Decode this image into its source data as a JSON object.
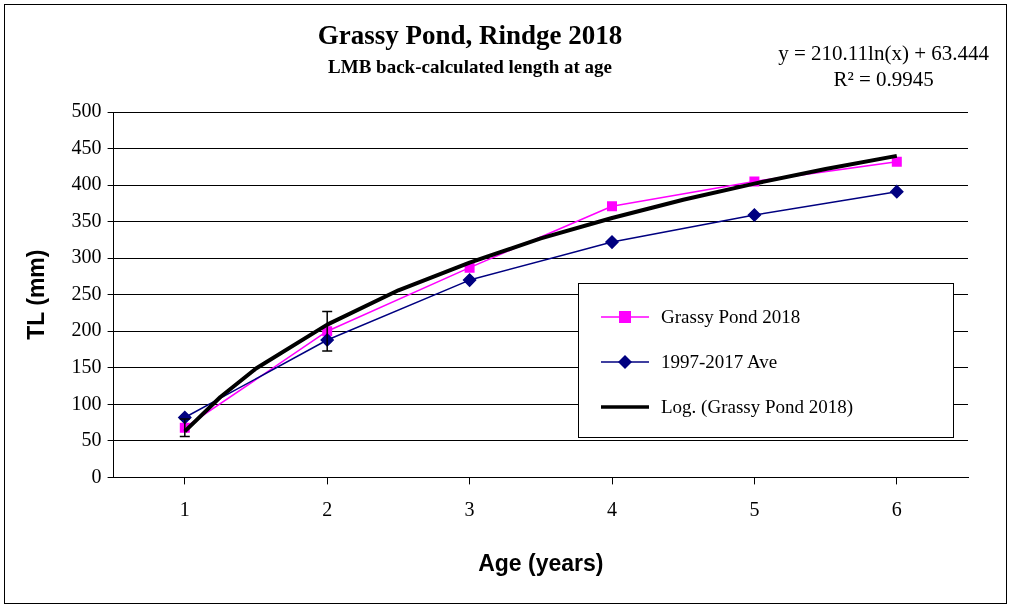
{
  "chart_data": {
    "type": "line",
    "title": "Grassy Pond, Rindge 2018",
    "subtitle": "LMB back-calculated length at age",
    "xlabel": "Age (years)",
    "ylabel": "TL (mm)",
    "annotations": [
      "y = 210.11ln(x) + 63.444",
      "R² = 0.9945"
    ],
    "x": [
      1,
      2,
      3,
      4,
      5,
      6
    ],
    "series": [
      {
        "name": "Grassy Pond 2018",
        "color": "#ff00ff",
        "marker": "square",
        "values": [
          68,
          200,
          287,
          371,
          405,
          432
        ],
        "errors": [
          12,
          27,
          null,
          null,
          null,
          null
        ]
      },
      {
        "name": "1997-2017 Ave",
        "color": "#000080",
        "marker": "diamond",
        "values": [
          82,
          188,
          270,
          322,
          359,
          391
        ]
      },
      {
        "name": "Log. (Grassy Pond 2018)",
        "color": "#000000",
        "marker": "none",
        "x": [
          1,
          1.25,
          1.5,
          2,
          2.5,
          3,
          3.5,
          4,
          4.5,
          5,
          5.5,
          6
        ],
        "values": [
          63,
          110,
          149,
          209,
          256,
          294,
          327,
          355,
          380,
          402,
          422,
          440
        ]
      }
    ],
    "xlim": [
      0.5,
      6.5
    ],
    "xticks": [
      1,
      2,
      3,
      4,
      5,
      6
    ],
    "ylim": [
      0,
      500
    ],
    "yticks": [
      0,
      50,
      100,
      150,
      200,
      250,
      300,
      350,
      400,
      450,
      500
    ],
    "grid": "y",
    "legend": "right"
  }
}
